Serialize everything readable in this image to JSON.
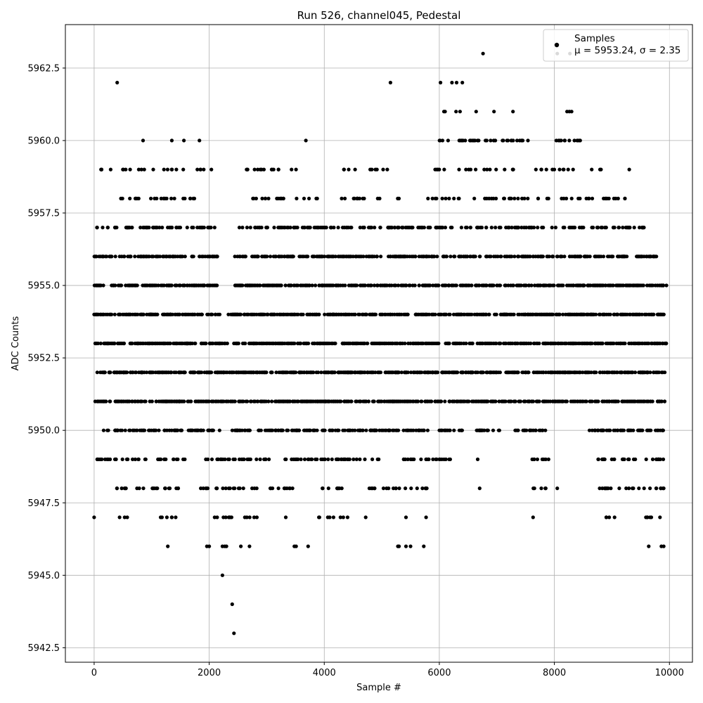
{
  "chart_data": {
    "type": "scatter",
    "title": "Run 526, channel045, Pedestal",
    "xlabel": "Sample #",
    "ylabel": "ADC Counts",
    "xlim": [
      -500,
      10400
    ],
    "ylim": [
      5942.0,
      5964.0
    ],
    "xticks": [
      0,
      2000,
      4000,
      6000,
      8000,
      10000
    ],
    "yticks": [
      5942.5,
      5945.0,
      5947.5,
      5950.0,
      5952.5,
      5955.0,
      5957.5,
      5960.0,
      5962.5
    ],
    "xtick_labels": [
      "0",
      "2000",
      "4000",
      "6000",
      "8000",
      "10000"
    ],
    "ytick_labels": [
      "5942.5",
      "5945.0",
      "5947.5",
      "5950.0",
      "5952.5",
      "5955.0",
      "5957.5",
      "5960.0",
      "5962.5"
    ],
    "grid": true,
    "legend": {
      "placement": "top-right",
      "series_label": "Samples",
      "stats_label": "μ = 5953.24, σ = 2.35"
    },
    "marker_color": "#000000",
    "series": [
      {
        "name": "Samples",
        "points": [
          [
            0,
            5947
          ],
          [
            400,
            5962
          ],
          [
            850,
            5960
          ],
          [
            1350,
            5960
          ],
          [
            1560,
            5960
          ],
          [
            1830,
            5960
          ],
          [
            3680,
            5960
          ],
          [
            5150,
            5962
          ],
          [
            6020,
            5962
          ],
          [
            6220,
            5962
          ],
          [
            6300,
            5962
          ],
          [
            6400,
            5962
          ],
          [
            6760,
            5963
          ],
          [
            8050,
            5963
          ],
          [
            8270,
            5963
          ],
          [
            2230,
            5945
          ],
          [
            2400,
            5944
          ],
          [
            2430,
            5943
          ],
          [
            1280,
            5946
          ],
          [
            1960,
            5946
          ],
          [
            2000,
            5946
          ],
          [
            2230,
            5946
          ],
          [
            2270,
            5946
          ],
          [
            2300,
            5946
          ],
          [
            2550,
            5946
          ],
          [
            2700,
            5946
          ],
          [
            3480,
            5946
          ],
          [
            3510,
            5946
          ],
          [
            3720,
            5946
          ],
          [
            5280,
            5946
          ],
          [
            5300,
            5946
          ],
          [
            5420,
            5946
          ],
          [
            5500,
            5946
          ],
          [
            5730,
            5946
          ],
          [
            9640,
            5946
          ],
          [
            9860,
            5946
          ],
          [
            9900,
            5946
          ],
          [
            6080,
            5961
          ],
          [
            6100,
            5961
          ],
          [
            6290,
            5961
          ],
          [
            6360,
            5961
          ],
          [
            6640,
            5961
          ],
          [
            6950,
            5961
          ],
          [
            7280,
            5961
          ],
          [
            8220,
            5961
          ],
          [
            8260,
            5961
          ],
          [
            8300,
            5961
          ],
          [
            7630,
            5947
          ],
          [
            4720,
            5947
          ],
          [
            5420,
            5947
          ],
          [
            5770,
            5947
          ]
        ],
        "levels": [
          {
            "y": 5960,
            "x_ranges": [
              [
                6000,
                6700
              ],
              [
                6800,
                7550
              ],
              [
                7950,
                8450
              ]
            ],
            "count": 46
          },
          {
            "y": 5959,
            "x_ranges": [
              [
                100,
                2100
              ],
              [
                2600,
                3900
              ],
              [
                4200,
                5100
              ],
              [
                5850,
                7400
              ],
              [
                7600,
                8850
              ],
              [
                9300,
                9300
              ]
            ],
            "count": 80
          },
          {
            "y": 5958,
            "x_ranges": [
              [
                400,
                1900
              ],
              [
                2650,
                3900
              ],
              [
                4300,
                5300
              ],
              [
                5800,
                8000
              ],
              [
                8100,
                9400
              ]
            ],
            "count": 110
          },
          {
            "y": 5957,
            "x_ranges": [
              [
                0,
                2100
              ],
              [
                2500,
                5000
              ],
              [
                5100,
                9600
              ]
            ],
            "count": 260
          },
          {
            "y": 5956,
            "x_ranges": [
              [
                0,
                2150
              ],
              [
                2400,
                9800
              ]
            ],
            "count": 420
          },
          {
            "y": 5955,
            "x_ranges": [
              [
                0,
                2200
              ],
              [
                2450,
                9950
              ]
            ],
            "count": 520
          },
          {
            "y": 5954,
            "x_ranges": [
              [
                0,
                2200
              ],
              [
                2300,
                9920
              ]
            ],
            "count": 560
          },
          {
            "y": 5953,
            "x_ranges": [
              [
                0,
                9950
              ]
            ],
            "count": 580
          },
          {
            "y": 5952,
            "x_ranges": [
              [
                0,
                9920
              ]
            ],
            "count": 580
          },
          {
            "y": 5951,
            "x_ranges": [
              [
                0,
                9920
              ]
            ],
            "count": 540
          },
          {
            "y": 5950,
            "x_ranges": [
              [
                150,
                1900
              ],
              [
                1950,
                5800
              ],
              [
                6000,
                6400
              ],
              [
                6650,
                7100
              ],
              [
                7300,
                7850
              ],
              [
                8550,
                9900
              ]
            ],
            "count": 340
          },
          {
            "y": 5949,
            "x_ranges": [
              [
                20,
                900
              ],
              [
                1100,
                1600
              ],
              [
                1900,
                3100
              ],
              [
                3300,
                5000
              ],
              [
                5300,
                6200
              ],
              [
                6650,
                6700
              ],
              [
                7600,
                7900
              ],
              [
                8700,
                9920
              ]
            ],
            "count": 170
          },
          {
            "y": 5948,
            "x_ranges": [
              [
                350,
                1500
              ],
              [
                1850,
                2900
              ],
              [
                3050,
                3550
              ],
              [
                3950,
                4350
              ],
              [
                4750,
                5800
              ],
              [
                6700,
                6750
              ],
              [
                7600,
                7850
              ],
              [
                8050,
                8050
              ],
              [
                8750,
                9950
              ]
            ],
            "count": 110
          },
          {
            "y": 5947,
            "x_ranges": [
              [
                400,
                600
              ],
              [
                1100,
                1500
              ],
              [
                1950,
                2850
              ],
              [
                3330,
                3330
              ],
              [
                3900,
                4450
              ],
              [
                8900,
                9150
              ],
              [
                9500,
                9920
              ]
            ],
            "count": 40
          }
        ]
      }
    ]
  }
}
